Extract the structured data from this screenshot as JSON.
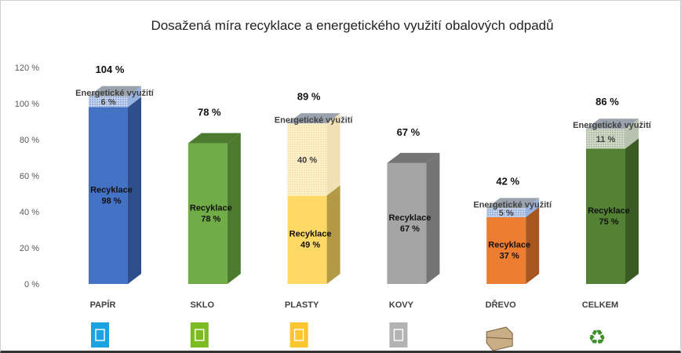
{
  "chart_data": {
    "type": "bar",
    "stacked": true,
    "title": "Dosažená míra recyklace a energetického využití obalových odpadů",
    "categories": [
      "PAPÍR",
      "SKLO",
      "PLASTY",
      "KOVY",
      "DŘEVO",
      "CELKEM"
    ],
    "series": [
      {
        "name": "Recyklace",
        "values": [
          98,
          78,
          49,
          67,
          37,
          75
        ]
      },
      {
        "name": "Energetické využití",
        "values": [
          6,
          null,
          40,
          null,
          5,
          11
        ]
      }
    ],
    "totals": [
      104,
      78,
      89,
      67,
      42,
      86
    ],
    "ylim": [
      0,
      120
    ],
    "yticks": [
      0,
      20,
      40,
      60,
      80,
      100,
      120
    ],
    "tick_suffix": " %",
    "value_suffix": " %",
    "icons": [
      "paper-box-icon",
      "glass-icon",
      "plastic-bottles-icon",
      "metal-can-icon",
      "wooden-crate-icon",
      "recycle-icon"
    ],
    "colors": {
      "recycle": [
        "#4472C4",
        "#70AD47",
        "#FFD966",
        "#A5A5A5",
        "#ED7D31",
        "#548235"
      ],
      "recycle_side": [
        "#2E4E8C",
        "#4C7A2F",
        "#B39A45",
        "#747474",
        "#A8561F",
        "#3A5C24"
      ],
      "energy": [
        "#C9D6EE",
        null,
        "#FFF3D0",
        null,
        "#C9D6EE",
        "#D4DCCB"
      ],
      "energy_dots": [
        "#4472C4",
        null,
        "#E6C878",
        null,
        "#4472C4",
        "#7F8F70"
      ],
      "icon_bg": [
        "#1AA3E0",
        "#7CBB22",
        "#FDC52E",
        "#B3B3B3",
        null,
        null
      ]
    }
  }
}
